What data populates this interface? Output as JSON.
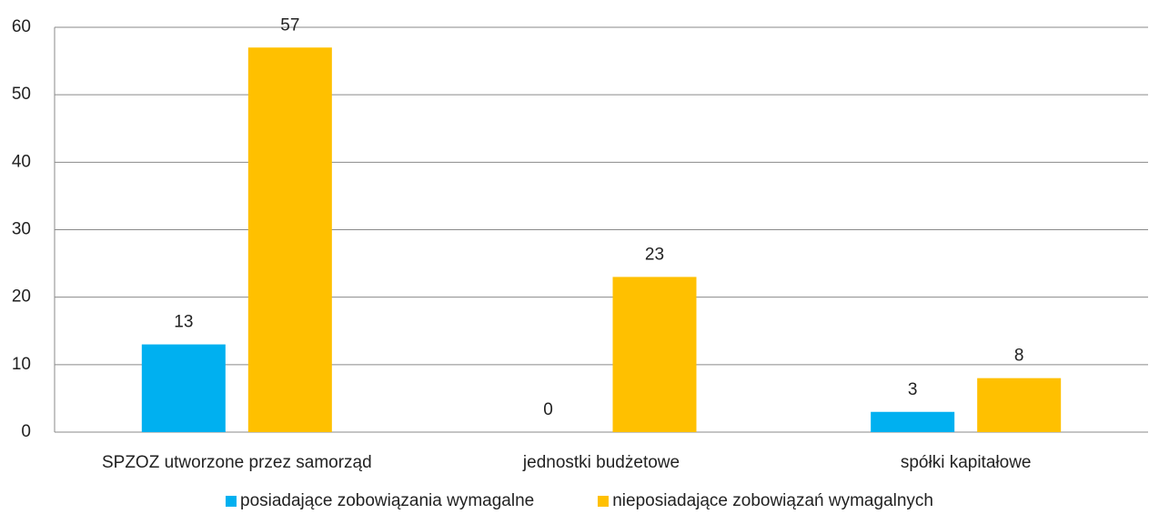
{
  "chart_data": {
    "type": "bar",
    "categories": [
      "SPZOZ utworzone przez samorząd",
      "jednostki budżetowe",
      "spółki kapitałowe"
    ],
    "series": [
      {
        "name": "posiadające zobowiązania wymagalne",
        "color": "#00b0f0",
        "values": [
          13,
          0,
          3
        ]
      },
      {
        "name": "nieposiadające zobowiązań wymagalnych",
        "color": "#ffc000",
        "values": [
          57,
          23,
          8
        ]
      }
    ],
    "ylim": [
      0,
      60
    ],
    "yticks": [
      0,
      10,
      20,
      30,
      40,
      50,
      60
    ],
    "grid": true,
    "legend": "bottom"
  }
}
